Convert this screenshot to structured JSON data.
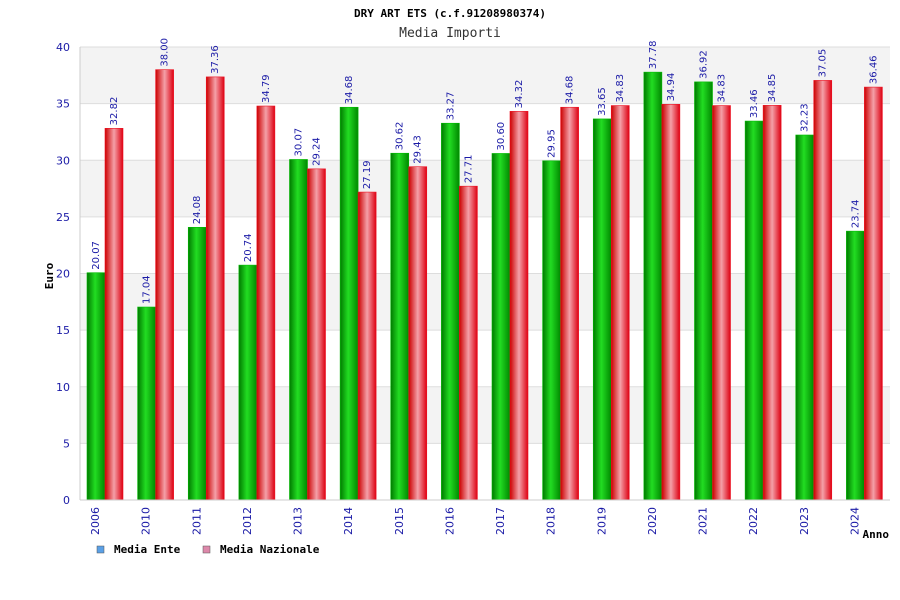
{
  "chart_data": {
    "type": "bar",
    "title": "DRY ART ETS (c.f.91208980374)",
    "subtitle": "Media Importi",
    "xlabel": "Anno",
    "ylabel": "Euro",
    "ylim": [
      0,
      40
    ],
    "yticks": [
      0,
      5,
      10,
      15,
      20,
      25,
      30,
      35,
      40
    ],
    "grid": true,
    "legend_position": "bottom-left",
    "categories": [
      "2006",
      "2010",
      "2011",
      "2012",
      "2013",
      "2014",
      "2015",
      "2016",
      "2017",
      "2018",
      "2019",
      "2020",
      "2021",
      "2022",
      "2023",
      "2024"
    ],
    "series": [
      {
        "name": "Media Ente",
        "color": "#00bb00",
        "legend_color": "#5aa0e6",
        "values": [
          20.07,
          17.04,
          24.08,
          20.74,
          30.07,
          34.68,
          30.62,
          33.27,
          30.6,
          29.95,
          33.65,
          37.78,
          36.92,
          33.46,
          32.23,
          23.74
        ],
        "labels": [
          "20.07",
          "17.04",
          "24.08",
          "20.74",
          "30.07",
          "34.68",
          "30.62",
          "33.27",
          "30.60",
          "29.95",
          "33.65",
          "37.78",
          "36.92",
          "33.46",
          "32.23",
          "23.74"
        ]
      },
      {
        "name": "Media Nazionale",
        "color": "#ee1122",
        "legend_color": "#dd88aa",
        "values": [
          32.82,
          38.0,
          37.36,
          34.79,
          29.24,
          27.19,
          29.43,
          27.71,
          34.32,
          34.68,
          34.83,
          34.94,
          34.83,
          34.85,
          37.05,
          36.46
        ],
        "labels": [
          "32.82",
          "38.00",
          "37.36",
          "34.79",
          "29.24",
          "27.19",
          "29.43",
          "27.71",
          "34.32",
          "34.68",
          "34.83",
          "34.94",
          "34.83",
          "34.85",
          "37.05",
          "36.46"
        ]
      }
    ]
  }
}
